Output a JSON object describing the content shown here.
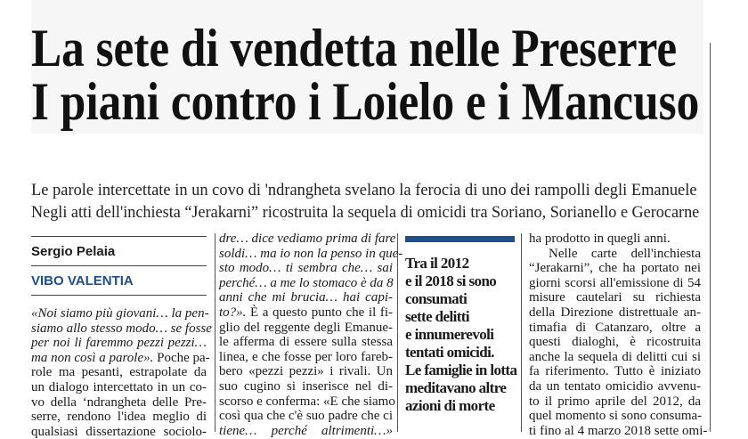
{
  "headline": {
    "line1": "La sete di vendetta nelle Preserre",
    "line2": "I piani contro i Loielo e i Mancuso"
  },
  "subheadline": {
    "line1": "Le parole intercettate in un covo di 'ndrangheta svelano la ferocia di uno dei rampolli degli Emanuele",
    "line2": "Negli atti dell'inchiesta “Jerakarni” ricostruita la sequela di omicidi tra Soriano, Sorianello e Gerocarne"
  },
  "byline": {
    "author": "Sergio Pelaia",
    "place": "VIBO VALENTIA"
  },
  "colors": {
    "accent": "#1f4e8c",
    "header_bg": "#f6f6f6"
  },
  "columns": [
    {
      "lines": [
        {
          "i": "«Noi siamo più giovani… la pen-",
          "r": ""
        },
        {
          "i": "siamo allo stesso modo… se fosse",
          "r": ""
        },
        {
          "i": "per noi li faremmo pezzi pezzi…",
          "r": ""
        },
        {
          "i": "ma non così a parole».",
          "r": " Poche pa-"
        },
        {
          "i": "",
          "r": "role ma pesanti, estrapolate da"
        },
        {
          "i": "",
          "r": "un dialogo intercettato in un co-"
        },
        {
          "i": "",
          "r": "vo della ‘ndrangheta delle Pre-"
        },
        {
          "i": "",
          "r": "serre, rendono l'idea meglio di"
        },
        {
          "i": "",
          "r": "qualsiasi dissertazione sociolo-"
        }
      ]
    },
    {
      "lines": [
        {
          "i": "dre… dice vediamo prima di fare",
          "r": ""
        },
        {
          "i": "soldi… ma io non la penso in que-",
          "r": ""
        },
        {
          "i": "sto modo… ti sembra che… sai",
          "r": ""
        },
        {
          "i": "perché… a me lo stomaco è da 8",
          "r": ""
        },
        {
          "i": "anni che mi brucia… hai capi-",
          "r": ""
        },
        {
          "i": "to?».",
          "r": " È a questo punto che il fi-"
        },
        {
          "i": "",
          "r": "glio del reggente degli Emanue-"
        },
        {
          "i": "",
          "r": "le afferma di essere sulla stessa"
        },
        {
          "i": "",
          "r": "linea, e che fosse per loro fareb-"
        },
        {
          "i": "",
          "r": "bero «pezzi pezzi» i rivali. Un"
        },
        {
          "i": "",
          "r": "suo cugino si inserisce nel di-"
        },
        {
          "i": "",
          "r": "scorso e conferma: «E che siamo"
        },
        {
          "i": "",
          "r": "così qua che c'è suo padre che ci"
        },
        {
          "i": "tiene… perché altrimenti…»",
          "r": ""
        }
      ]
    },
    {
      "lines": [
        {
          "i": "",
          "r": "ha prodotto in quegli anni."
        },
        {
          "i": "",
          "r": "Nelle carte dell'inchiesta"
        },
        {
          "i": "",
          "r": "“Jerakarni”, che ha portato nei"
        },
        {
          "i": "",
          "r": "giorni scorsi all'emissione di 54"
        },
        {
          "i": "",
          "r": "misure cautelari su richiesta"
        },
        {
          "i": "",
          "r": "della Direzione distrettuale an-"
        },
        {
          "i": "",
          "r": "timafia di Catanzaro, oltre a"
        },
        {
          "i": "",
          "r": "questi dialoghi, è ricostruita"
        },
        {
          "i": "",
          "r": "anche la sequela di delitti cui si"
        },
        {
          "i": "",
          "r": "fa riferimento. Tutto è iniziato"
        },
        {
          "i": "",
          "r": "da un tentato omicidio avvenu-"
        },
        {
          "i": "",
          "r": "to il primo aprile del 2012, da"
        },
        {
          "i": "",
          "r": "quel momento si sono consuma-"
        },
        {
          "i": "",
          "r": "ti fino al 4 marzo 2018 sette omi-"
        }
      ]
    }
  ],
  "sidebar": {
    "lines": [
      "Tra il 2012",
      "e il 2018 si sono",
      "consumati",
      "sette delitti",
      "e innumerevoli",
      "tentati omicidi.",
      "Le famiglie in lotta",
      "meditavano altre",
      "azioni di morte"
    ]
  }
}
